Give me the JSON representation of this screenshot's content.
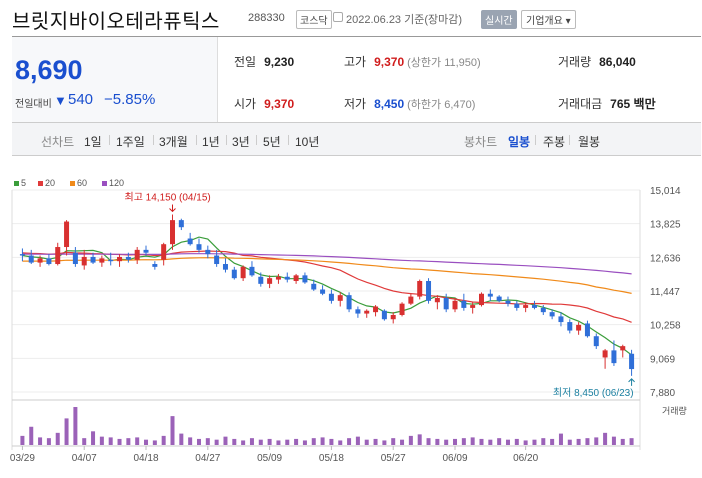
{
  "header": {
    "title": "브릿지바이오테라퓨틱스",
    "code": "288330",
    "market": "코스닥",
    "date": "2022.06.23 기준(장마감)",
    "realtime": "실시간",
    "overview": "기업개요 ▾"
  },
  "price": {
    "current": "8,690",
    "compare_label": "전일대비",
    "arrow": "▼",
    "change": "540",
    "percent": "−5.85%",
    "color": "#1a4fcf"
  },
  "stats": {
    "prev_label": "전일",
    "prev": "9,230",
    "high_label": "고가",
    "high": "9,370",
    "upper_limit": "(상한가 11,950)",
    "volume_label": "거래량",
    "volume": "86,040",
    "open_label": "시가",
    "open": "9,370",
    "low_label": "저가",
    "low": "8,450",
    "lower_limit": "(하한가 6,470)",
    "amount_label": "거래대금",
    "amount": "765 백만"
  },
  "tabs": {
    "line_label": "선차트",
    "periods": [
      "1일",
      "1주일",
      "3개월",
      "1년",
      "3년",
      "5년",
      "10년"
    ],
    "candle_label": "봉차트",
    "candle": [
      "일봉",
      "주봉",
      "월봉"
    ],
    "active_candle": "일봉"
  },
  "chart_data": {
    "type": "candlestick",
    "legend": [
      {
        "name": "5",
        "color": "#3a9d3a"
      },
      {
        "name": "20",
        "color": "#e03a3a"
      },
      {
        "name": "60",
        "color": "#f08a1a"
      },
      {
        "name": "120",
        "color": "#9a4fc0"
      }
    ],
    "y_ticks": [
      "15,014",
      "13,825",
      "12,636",
      "11,447",
      "10,258",
      "9,069",
      "7,880"
    ],
    "ylim": [
      7880,
      15014
    ],
    "x_labels": [
      "03/29",
      "04/07",
      "04/18",
      "04/27",
      "05/09",
      "05/18",
      "05/27",
      "06/09",
      "06/20"
    ],
    "annotation_high": "최고 14,150 (04/15)",
    "annotation_low": "최저 8,450 (06/23)",
    "volume_label": "거래량",
    "up_color": "#d83030",
    "down_color": "#2f6fd8",
    "candles": [
      [
        12750,
        12950,
        12500,
        12700
      ],
      [
        12700,
        12900,
        12400,
        12450
      ],
      [
        12450,
        12700,
        12300,
        12600
      ],
      [
        12600,
        12750,
        12350,
        12400
      ],
      [
        12400,
        13150,
        12350,
        13000
      ],
      [
        13000,
        13950,
        12700,
        13900
      ],
      [
        12800,
        13000,
        12300,
        12400
      ],
      [
        12350,
        12900,
        12200,
        12650
      ],
      [
        12650,
        12800,
        12400,
        12450
      ],
      [
        12450,
        12700,
        12300,
        12600
      ],
      [
        12550,
        12800,
        12350,
        12500
      ],
      [
        12500,
        12750,
        12300,
        12650
      ],
      [
        12650,
        12800,
        12450,
        12550
      ],
      [
        12550,
        13000,
        12400,
        12900
      ],
      [
        12900,
        13050,
        12700,
        12800
      ],
      [
        12400,
        12500,
        12200,
        12300
      ],
      [
        12550,
        13150,
        12350,
        13100
      ],
      [
        13100,
        14150,
        12900,
        13950
      ],
      [
        13950,
        14000,
        13600,
        13700
      ],
      [
        13300,
        13500,
        13050,
        13100
      ],
      [
        13100,
        13300,
        12800,
        12900
      ],
      [
        12900,
        13050,
        12600,
        12750
      ],
      [
        12700,
        12900,
        12300,
        12400
      ],
      [
        12400,
        12600,
        12100,
        12200
      ],
      [
        12200,
        12300,
        11850,
        11900
      ],
      [
        11900,
        12350,
        11800,
        12300
      ],
      [
        12300,
        12500,
        11950,
        12000
      ],
      [
        11950,
        12100,
        11600,
        11700
      ],
      [
        11700,
        12000,
        11550,
        11900
      ],
      [
        11850,
        12050,
        11700,
        11950
      ],
      [
        11950,
        12100,
        11750,
        11850
      ],
      [
        11800,
        12050,
        11700,
        12000
      ],
      [
        12000,
        12100,
        11700,
        11750
      ],
      [
        11700,
        11850,
        11450,
        11500
      ],
      [
        11500,
        11650,
        11300,
        11350
      ],
      [
        11350,
        11500,
        11000,
        11100
      ],
      [
        11100,
        11400,
        10900,
        11300
      ],
      [
        11300,
        11400,
        10700,
        10800
      ],
      [
        10800,
        10900,
        10500,
        10650
      ],
      [
        10650,
        10800,
        10500,
        10750
      ],
      [
        10700,
        10950,
        10550,
        10900
      ],
      [
        10750,
        10800,
        10400,
        10450
      ],
      [
        10450,
        10700,
        10300,
        10600
      ],
      [
        10600,
        11050,
        10550,
        11000
      ],
      [
        11000,
        11350,
        10950,
        11250
      ],
      [
        11250,
        11850,
        11150,
        11800
      ],
      [
        11800,
        11900,
        11000,
        11100
      ],
      [
        11050,
        11300,
        10800,
        11200
      ],
      [
        11200,
        11350,
        10700,
        10800
      ],
      [
        10800,
        11200,
        10700,
        11100
      ],
      [
        11100,
        11350,
        10750,
        10850
      ],
      [
        10850,
        11050,
        10650,
        10950
      ],
      [
        10950,
        11400,
        10900,
        11350
      ],
      [
        11350,
        11500,
        11100,
        11250
      ],
      [
        11250,
        11300,
        11050,
        11100
      ],
      [
        11100,
        11250,
        10900,
        11000
      ],
      [
        11000,
        11100,
        10750,
        10850
      ],
      [
        10850,
        11050,
        10700,
        10950
      ],
      [
        10950,
        11100,
        10800,
        10850
      ],
      [
        10850,
        10950,
        10600,
        10700
      ],
      [
        10700,
        10800,
        10450,
        10550
      ],
      [
        10550,
        10700,
        10200,
        10350
      ],
      [
        10350,
        10450,
        9950,
        10050
      ],
      [
        10050,
        10350,
        9900,
        10250
      ],
      [
        10300,
        10400,
        9800,
        9850
      ],
      [
        9850,
        9950,
        9400,
        9500
      ],
      [
        9100,
        9400,
        8700,
        9350
      ],
      [
        9350,
        9700,
        8800,
        8900
      ],
      [
        9350,
        9550,
        9100,
        9500
      ],
      [
        9230,
        9370,
        8450,
        8690
      ]
    ],
    "volumes": [
      1.2,
      2.4,
      1.0,
      0.9,
      1.6,
      3.5,
      5.0,
      0.9,
      1.8,
      1.1,
      1.0,
      0.8,
      0.9,
      1.0,
      0.7,
      0.6,
      1.2,
      3.8,
      1.5,
      1.0,
      0.8,
      0.9,
      0.7,
      1.1,
      0.8,
      0.6,
      0.9,
      0.7,
      0.8,
      0.6,
      0.7,
      0.8,
      0.6,
      0.9,
      1.0,
      0.8,
      0.6,
      0.9,
      1.1,
      0.7,
      0.8,
      0.6,
      0.9,
      0.7,
      1.2,
      1.4,
      0.9,
      0.8,
      0.7,
      0.8,
      0.9,
      1.0,
      0.8,
      0.7,
      0.9,
      0.7,
      0.8,
      0.6,
      0.7,
      0.9,
      0.8,
      1.5,
      0.7,
      0.8,
      0.9,
      1.0,
      1.6,
      1.1,
      0.8,
      0.9
    ]
  }
}
